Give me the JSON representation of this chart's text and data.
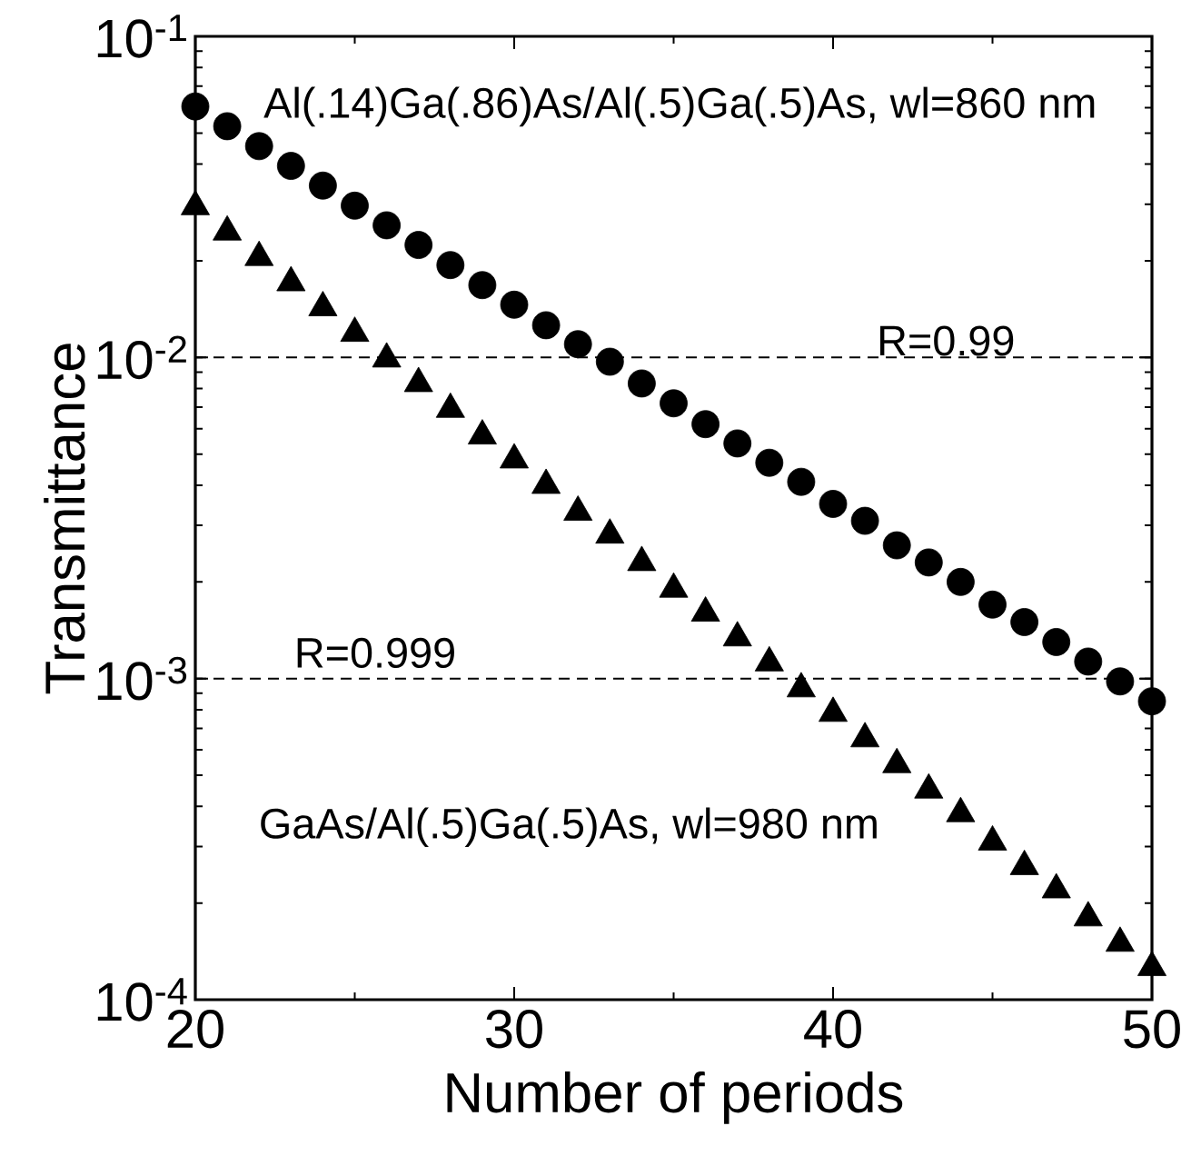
{
  "chart_data": {
    "type": "scatter",
    "xlabel": "Number of periods",
    "ylabel": "Transmittance",
    "log": "y",
    "x": [
      20,
      21,
      22,
      23,
      24,
      25,
      26,
      27,
      28,
      29,
      30,
      31,
      32,
      33,
      34,
      35,
      36,
      37,
      38,
      39,
      40,
      41,
      42,
      43,
      44,
      45,
      46,
      47,
      48,
      49,
      50
    ],
    "series": [
      {
        "color": "#000000",
        "marker": "circle",
        "values": [
          0.0605,
          0.0525,
          0.0455,
          0.0395,
          0.0343,
          0.0297,
          0.0258,
          0.0224,
          0.0194,
          0.0168,
          0.0146,
          0.0126,
          0.011,
          0.0097,
          0.0083,
          0.0072,
          0.0062,
          0.0054,
          0.0047,
          0.0041,
          0.0035,
          0.0031,
          0.0026,
          0.0023,
          0.002,
          0.0017,
          0.0015,
          0.0013,
          0.00113,
          0.00098,
          0.00085
        ]
      },
      {
        "color": "#000000",
        "marker": "triangle",
        "values": [
          0.0295,
          0.0246,
          0.0205,
          0.0171,
          0.0143,
          0.0119,
          0.0099,
          0.0083,
          0.0069,
          0.0057,
          0.0048,
          0.004,
          0.0033,
          0.0028,
          0.0023,
          0.0019,
          0.0016,
          0.00134,
          0.00112,
          0.00093,
          0.00078,
          0.00065,
          0.00054,
          0.00045,
          0.00038,
          0.00031,
          0.00026,
          0.00022,
          0.00018,
          0.00015,
          0.000126
        ]
      }
    ],
    "xlim": [
      20,
      50
    ],
    "xticks": [
      20,
      30,
      40,
      50
    ],
    "ylim": [
      0.0001,
      0.1
    ],
    "yticks": [
      {
        "value": 0.0001,
        "label": "10$^{-4}$"
      },
      {
        "value": 0.001,
        "label": "10$^{-3}$"
      },
      {
        "value": 0.01,
        "label": "10$^{-2}$"
      },
      {
        "value": 0.1,
        "label": "10$^{-1}$"
      }
    ],
    "ref_lines": [
      {
        "axis": "y",
        "value": 0.01,
        "color": "#000000",
        "line_style": "dashed"
      },
      {
        "axis": "y",
        "value": 0.001,
        "color": "#000000",
        "line_style": "dashed"
      }
    ],
    "annotations": [
      "Al(.14)Ga(.86)As/Al(.5)Ga(.5)As, wl=860 nm",
      "GaAs/Al(.5)Ga(.5)As, wl=980 nm",
      "R=0.99",
      "R=0.999"
    ]
  }
}
